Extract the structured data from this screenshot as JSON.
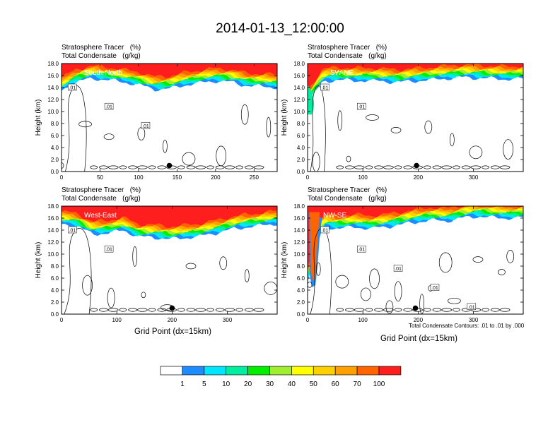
{
  "title": "2014-01-13_12:00:00",
  "colors": [
    "#ffffff",
    "#1e8cff",
    "#00e6ff",
    "#00eea0",
    "#00ee00",
    "#a0ee30",
    "#ffff00",
    "#ffd000",
    "#ffa000",
    "#ff6400",
    "#ff1e1e"
  ],
  "colorbar": {
    "labels": [
      "1",
      "5",
      "10",
      "20",
      "30",
      "40",
      "50",
      "60",
      "70",
      "100"
    ]
  },
  "footnote": "Total Condensate Contours: .01 to .01 by .000",
  "chart_data": [
    {
      "type": "contour",
      "subtitle": [
        "Stratosphere Tracer   (%)",
        "Total Condensate   (g/kg)"
      ],
      "label": "South-North",
      "ylabel": "Height (km)",
      "xlabel": "",
      "ylim": [
        0,
        18
      ],
      "xlim": [
        0,
        280
      ],
      "xticks": [
        0,
        50,
        100,
        150,
        200,
        250
      ],
      "yticks": [
        "0.0",
        "2.0",
        "4.0",
        "6.0",
        "8.0",
        "10.0",
        "12.0",
        "14.0",
        "16.0",
        "18.0"
      ],
      "contour_labels": [
        ".01",
        ".01",
        ".01"
      ],
      "marker_x": 140,
      "marker_y": 1.0,
      "tropopause_km": [
        13.0,
        14.5,
        15.0,
        14.8,
        14.4,
        14.0,
        13.2,
        13.3,
        13.9,
        14.3,
        14.6,
        14.4,
        13.8,
        13.7,
        13.5
      ]
    },
    {
      "type": "contour",
      "subtitle": [
        "Stratosphere Tracer   (%)",
        "Total Condensate   (g/kg)"
      ],
      "label": "SW-NE",
      "ylabel": "Height (km)",
      "xlabel": "",
      "ylim": [
        0,
        18
      ],
      "xlim": [
        0,
        390
      ],
      "xticks": [
        0,
        100,
        200,
        300
      ],
      "yticks": [
        "0.0",
        "2.0",
        "4.0",
        "6.0",
        "8.0",
        "10.0",
        "12.0",
        "14.0",
        "16.0",
        "18.0"
      ],
      "contour_labels": [
        ".01",
        ".01"
      ],
      "marker_x": 197,
      "marker_y": 1.0,
      "tropopause_km": [
        11.0,
        14.5,
        14.8,
        14.6,
        14.7,
        14.5,
        14.4,
        14.6,
        14.8,
        15.0,
        15.2,
        15.1,
        15.0,
        14.9,
        15.0
      ]
    },
    {
      "type": "contour",
      "subtitle": [
        "Stratosphere Tracer   (%)",
        "Total Condensate   (g/kg)"
      ],
      "label": "West-East",
      "ylabel": "Height (km)",
      "xlabel": "Grid Point (dx=15km)",
      "ylim": [
        0,
        18
      ],
      "xlim": [
        0,
        390
      ],
      "xticks": [
        0,
        100,
        200,
        300
      ],
      "yticks": [
        "0.0",
        "2.0",
        "4.0",
        "6.0",
        "8.0",
        "10.0",
        "12.0",
        "14.0",
        "16.0",
        "18.0"
      ],
      "contour_labels": [
        ".01",
        ".01"
      ],
      "marker_x": 200,
      "marker_y": 1.0,
      "tropopause_km": [
        14.5,
        14.2,
        12.8,
        13.0,
        13.5,
        12.4,
        12.3,
        12.0,
        12.2,
        12.5,
        13.0,
        13.6,
        14.0,
        14.3,
        14.6
      ]
    },
    {
      "type": "contour",
      "subtitle": [
        "Stratosphere Tracer   (%)",
        "Total Condensate   (g/kg)"
      ],
      "label": "NW-SE",
      "ylabel": "Height (km)",
      "xlabel": "Grid Point (dx=15km)",
      "ylim": [
        0,
        18
      ],
      "xlim": [
        0,
        390
      ],
      "xticks": [
        0,
        100,
        200,
        300
      ],
      "yticks": [
        "0.0",
        "2.0",
        "4.0",
        "6.0",
        "8.0",
        "10.0",
        "12.0",
        "14.0",
        "16.0",
        "18.0"
      ],
      "contour_labels": [
        ".01",
        ".01",
        ".01",
        ".01",
        ".01"
      ],
      "marker_x": 195,
      "marker_y": 1.0,
      "tropopause_km": [
        5.0,
        14.0,
        13.8,
        14.0,
        13.8,
        14.0,
        14.4,
        14.8,
        15.2,
        15.0,
        15.5,
        15.8,
        15.6,
        15.5,
        15.6
      ]
    }
  ]
}
